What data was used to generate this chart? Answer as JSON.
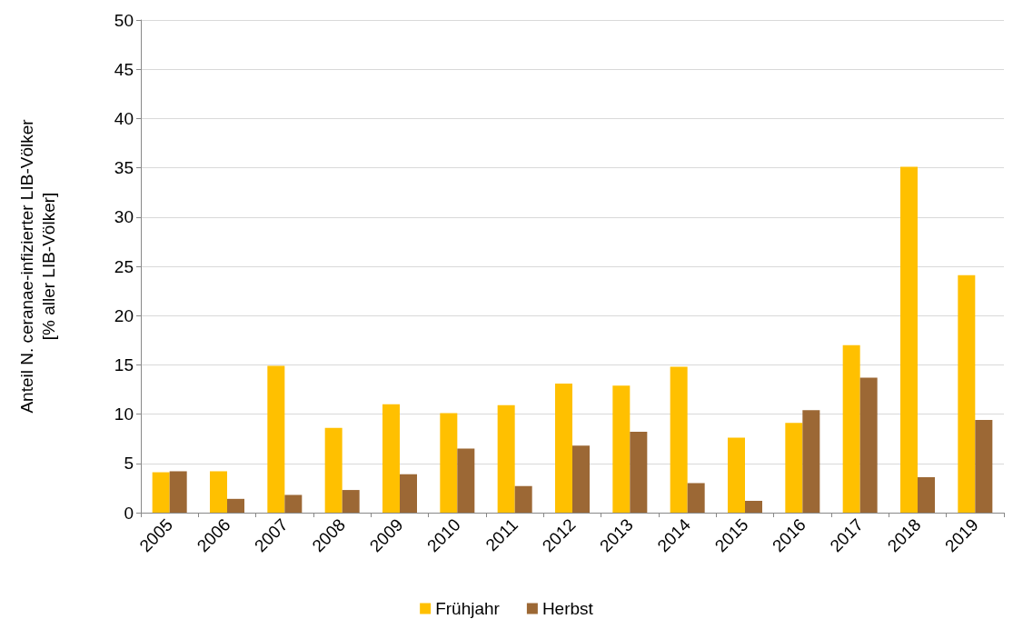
{
  "chart_data": {
    "type": "bar",
    "ylabel": "Anteil N. ceranae-infizierter LIB-Völker\n[% aller LIB-Völker]",
    "categories": [
      "2005",
      "2006",
      "2007",
      "2008",
      "2009",
      "2010",
      "2011",
      "2012",
      "2013",
      "2014",
      "2015",
      "2016",
      "2017",
      "2018",
      "2019"
    ],
    "series": [
      {
        "name": "Frühjahr",
        "color": "#ffc000",
        "values": [
          4.1,
          4.2,
          14.9,
          8.6,
          11.0,
          10.1,
          10.9,
          13.1,
          12.9,
          14.8,
          7.6,
          9.1,
          17.0,
          35.1,
          24.1
        ]
      },
      {
        "name": "Herbst",
        "color": "#9c6835",
        "values": [
          4.2,
          1.4,
          1.8,
          2.3,
          3.9,
          6.5,
          2.7,
          6.8,
          8.2,
          3.0,
          1.2,
          10.4,
          13.7,
          3.6,
          9.4
        ]
      }
    ],
    "ylim": [
      0,
      50
    ],
    "yticks": [
      0,
      5,
      10,
      15,
      20,
      25,
      30,
      35,
      40,
      45,
      50
    ],
    "grid": "y",
    "legend": "bottom"
  }
}
